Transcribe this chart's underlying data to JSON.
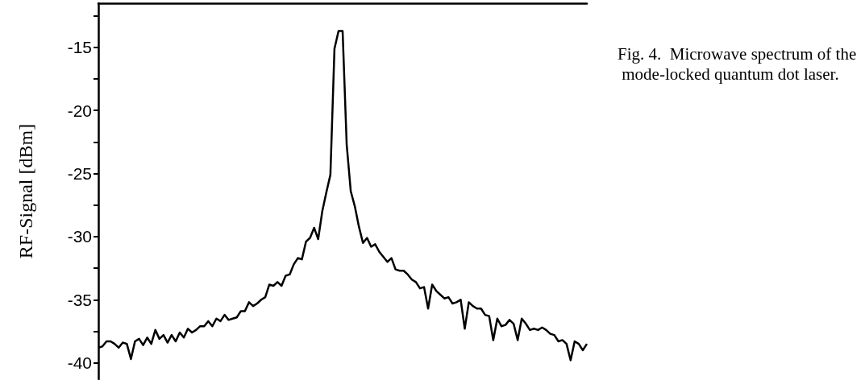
{
  "chart_data": {
    "type": "line",
    "ylabel": "RF-Signal [dBm]",
    "annotations": [
      "Fig. 4.  Microwave spectrum of the mode-locked quantum dot laser."
    ],
    "categories": [
      null,
      null,
      null,
      null,
      null,
      null,
      null,
      null,
      null,
      null,
      null,
      null,
      null,
      null,
      null,
      null,
      null,
      null,
      null,
      null,
      null,
      null,
      null,
      null,
      null,
      null,
      null,
      null,
      null,
      null,
      null,
      null,
      null,
      null,
      null,
      null,
      null,
      null,
      null,
      null,
      null,
      null,
      null,
      null,
      null,
      null,
      null,
      null,
      null,
      null,
      null,
      null,
      null,
      null,
      null,
      null,
      null,
      null,
      null,
      null,
      null,
      null,
      null,
      null,
      null,
      null,
      null,
      null,
      null,
      null,
      null,
      null,
      null,
      null,
      null,
      null,
      null,
      null,
      null,
      null,
      null,
      null,
      null,
      null,
      null,
      null,
      null,
      null,
      null,
      null,
      null,
      null,
      null,
      null,
      null,
      null,
      null,
      null,
      null,
      null,
      null,
      null,
      null,
      null,
      null,
      null,
      null,
      null,
      null,
      null,
      null,
      null,
      null,
      null,
      null,
      null,
      null,
      null,
      null,
      null,
      null
    ],
    "ylim": [
      -41.3,
      -11.5
    ],
    "yticks": [
      {
        "value": -12.5,
        "label": null
      },
      -15,
      {
        "value": -17.5,
        "label": null
      },
      -20,
      {
        "value": -22.5,
        "label": null
      },
      -25,
      {
        "value": -27.5,
        "label": null
      },
      -30,
      {
        "value": -32.5,
        "label": null
      },
      -35,
      {
        "value": -37.5,
        "label": null
      },
      -40
    ],
    "tick_labels": "y",
    "line_style": "solid",
    "series": [
      {
        "color": "#000000",
        "values": [
          -38.8,
          -38.7,
          -38.3,
          -38.3,
          -38.5,
          -38.8,
          -38.4,
          -38.5,
          -39.7,
          -38.3,
          -38.1,
          -38.6,
          -38.0,
          -38.5,
          -37.4,
          -38.1,
          -37.8,
          -38.4,
          -37.8,
          -38.3,
          -37.6,
          -38.0,
          -37.3,
          -37.6,
          -37.4,
          -37.1,
          -37.1,
          -36.7,
          -37.1,
          -36.5,
          -36.7,
          -36.2,
          -36.6,
          -36.5,
          -36.4,
          -35.9,
          -35.9,
          -35.2,
          -35.5,
          -35.3,
          -35.0,
          -34.8,
          -33.8,
          -33.9,
          -33.6,
          -33.9,
          -33.1,
          -33.0,
          -32.2,
          -31.7,
          -31.8,
          -30.4,
          -30.1,
          -29.3,
          -30.2,
          -28.0,
          -26.5,
          -25.1,
          -15.1,
          -13.7,
          -13.7,
          -22.7,
          -26.4,
          -27.6,
          -29.2,
          -30.5,
          -30.1,
          -30.8,
          -30.6,
          -31.2,
          -31.6,
          -32.0,
          -31.7,
          -32.6,
          -32.7,
          -32.7,
          -33.0,
          -33.4,
          -33.6,
          -34.1,
          -34.0,
          -35.7,
          -33.8,
          -34.3,
          -34.6,
          -34.9,
          -34.8,
          -35.3,
          -35.2,
          -35.0,
          -37.3,
          -35.2,
          -35.5,
          -35.7,
          -35.7,
          -36.2,
          -36.3,
          -38.2,
          -36.5,
          -37.1,
          -37.0,
          -36.6,
          -36.9,
          -38.2,
          -36.5,
          -36.9,
          -37.4,
          -37.3,
          -37.4,
          -37.2,
          -37.4,
          -37.7,
          -37.8,
          -38.3,
          -38.2,
          -38.5,
          -39.8,
          -38.3,
          -38.5,
          -39.0,
          -38.5
        ]
      }
    ]
  }
}
